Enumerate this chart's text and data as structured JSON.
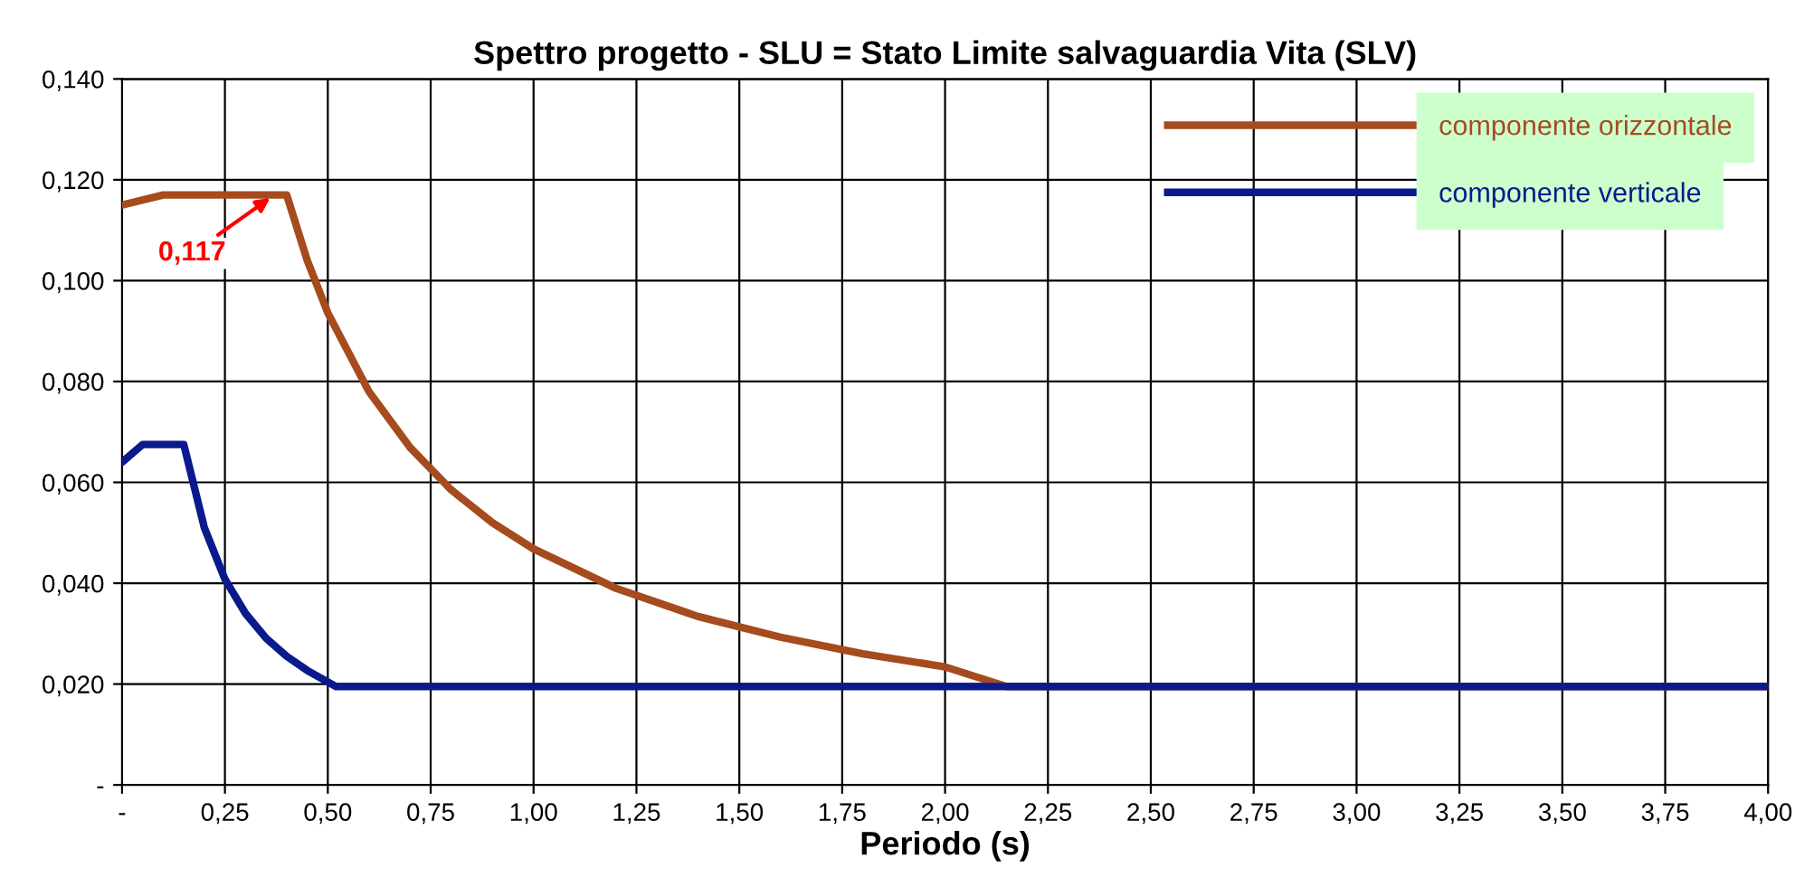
{
  "chart_data": {
    "type": "line",
    "title": "Spettro progetto - SLU = Stato Limite salvaguardia Vita (SLV)",
    "xlabel": "Periodo (s)",
    "series": [
      {
        "name": "componente orizzontale",
        "color": "#a64b1e",
        "x": [
          0,
          0.1,
          0.4,
          0.45,
          0.5,
          0.6,
          0.7,
          0.8,
          0.9,
          1.0,
          1.2,
          1.4,
          1.6,
          1.8,
          2.0,
          2.15,
          4.0
        ],
        "values": [
          0.115,
          0.117,
          0.117,
          0.104,
          0.0936,
          0.078,
          0.0669,
          0.0585,
          0.052,
          0.0468,
          0.039,
          0.0334,
          0.0293,
          0.026,
          0.0234,
          0.0195,
          0.0195
        ]
      },
      {
        "name": "componente verticale",
        "color": "#0a1a8c",
        "x": [
          0,
          0.05,
          0.15,
          0.2,
          0.25,
          0.3,
          0.35,
          0.4,
          0.45,
          0.52,
          4.0
        ],
        "values": [
          0.064,
          0.0675,
          0.0675,
          0.051,
          0.0408,
          0.034,
          0.0291,
          0.0255,
          0.0227,
          0.0195,
          0.0195
        ]
      }
    ],
    "annotations": [
      {
        "text": "0,117",
        "x": 0.37,
        "y": 0.117
      }
    ],
    "xlim": [
      0,
      4
    ],
    "ylim": [
      0,
      0.14
    ],
    "xticks": [
      {
        "value": 0,
        "label": "-"
      },
      {
        "value": 0.25,
        "label": "0,25"
      },
      {
        "value": 0.5,
        "label": "0,50"
      },
      {
        "value": 0.75,
        "label": "0,75"
      },
      {
        "value": 1,
        "label": "1,00"
      },
      {
        "value": 1.25,
        "label": "1,25"
      },
      {
        "value": 1.5,
        "label": "1,50"
      },
      {
        "value": 1.75,
        "label": "1,75"
      },
      {
        "value": 2,
        "label": "2,00"
      },
      {
        "value": 2.25,
        "label": "2,25"
      },
      {
        "value": 2.5,
        "label": "2,50"
      },
      {
        "value": 2.75,
        "label": "2,75"
      },
      {
        "value": 3,
        "label": "3,00"
      },
      {
        "value": 3.25,
        "label": "3,25"
      },
      {
        "value": 3.5,
        "label": "3,50"
      },
      {
        "value": 3.75,
        "label": "3,75"
      },
      {
        "value": 4,
        "label": "4,00"
      }
    ],
    "yticks": [
      {
        "value": 0,
        "label": "-"
      },
      {
        "value": 0.02,
        "label": "0,020"
      },
      {
        "value": 0.04,
        "label": "0,040"
      },
      {
        "value": 0.06,
        "label": "0,060"
      },
      {
        "value": 0.08,
        "label": "0,080"
      },
      {
        "value": 0.1,
        "label": "0,100"
      },
      {
        "value": 0.12,
        "label": "0,120"
      },
      {
        "value": 0.14,
        "label": "0,140"
      }
    ],
    "grid": true,
    "legend": "top right",
    "marker": "none",
    "line_style": "solid"
  }
}
